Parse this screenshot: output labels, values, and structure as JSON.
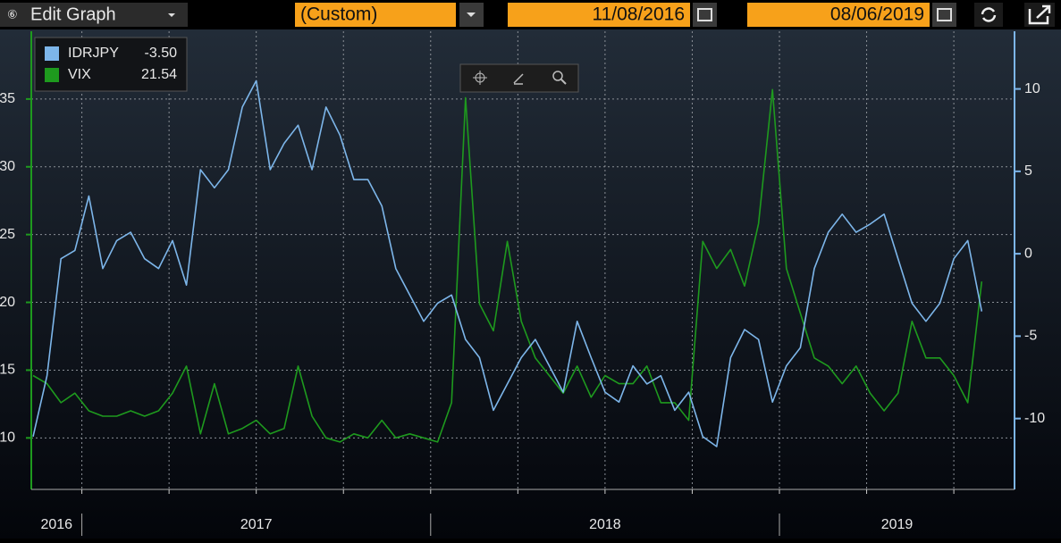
{
  "toolbar": {
    "title": "Edit Graph",
    "period": "(Custom)",
    "start_date": "11/08/2016",
    "end_date": "08/06/2019"
  },
  "chart_data": {
    "type": "line",
    "x": [
      2016.86,
      2016.9,
      2016.94,
      2016.98,
      2017.02,
      2017.06,
      2017.1,
      2017.14,
      2017.18,
      2017.22,
      2017.26,
      2017.3,
      2017.34,
      2017.38,
      2017.42,
      2017.46,
      2017.5,
      2017.54,
      2017.58,
      2017.62,
      2017.66,
      2017.7,
      2017.74,
      2017.78,
      2017.82,
      2017.86,
      2017.9,
      2017.94,
      2017.98,
      2018.02,
      2018.06,
      2018.1,
      2018.14,
      2018.18,
      2018.22,
      2018.26,
      2018.3,
      2018.34,
      2018.38,
      2018.42,
      2018.46,
      2018.5,
      2018.54,
      2018.58,
      2018.62,
      2018.66,
      2018.7,
      2018.74,
      2018.78,
      2018.82,
      2018.86,
      2018.9,
      2018.94,
      2018.98,
      2019.02,
      2019.06,
      2019.1,
      2019.14,
      2019.18,
      2019.22,
      2019.26,
      2019.3,
      2019.34,
      2019.38,
      2019.42,
      2019.46,
      2019.5,
      2019.54,
      2019.58
    ],
    "series": [
      {
        "name": "IDRJPY",
        "last_value_label": "-3.50",
        "color": "#7db6ea",
        "axis": "y2",
        "values": [
          -11.1,
          -7.4,
          -0.3,
          0.2,
          3.5,
          -0.9,
          0.8,
          1.3,
          -0.3,
          -0.9,
          0.8,
          -1.9,
          5.1,
          4.0,
          5.1,
          8.9,
          10.5,
          5.1,
          6.7,
          7.8,
          5.1,
          8.9,
          7.2,
          4.5,
          4.5,
          2.9,
          -0.9,
          -2.5,
          -4.1,
          -3.0,
          -2.5,
          -5.2,
          -6.3,
          -9.5,
          -7.9,
          -6.3,
          -5.2,
          -6.8,
          -8.4,
          -4.1,
          -6.3,
          -8.4,
          -9.0,
          -6.8,
          -7.9,
          -7.4,
          -9.5,
          -8.4,
          -11.1,
          -11.7,
          -6.3,
          -4.6,
          -5.2,
          -9.0,
          -6.8,
          -5.7,
          -0.9,
          1.3,
          2.4,
          1.3,
          1.8,
          2.4,
          -0.3,
          -3.0,
          -4.1,
          -3.0,
          -0.3,
          0.8,
          -3.5
        ]
      },
      {
        "name": "VIX",
        "last_value_label": "21.54",
        "color": "#1e9a1e",
        "values": [
          14.6,
          14.0,
          12.6,
          13.3,
          12.0,
          11.6,
          11.6,
          12.0,
          11.6,
          12.0,
          13.3,
          15.3,
          10.3,
          14.0,
          10.3,
          10.7,
          11.3,
          10.3,
          10.7,
          15.3,
          11.6,
          10.0,
          9.7,
          10.3,
          10.0,
          11.3,
          10.0,
          10.3,
          10.0,
          9.7,
          12.6,
          35.1,
          19.9,
          17.9,
          24.5,
          18.6,
          15.9,
          14.6,
          13.3,
          15.3,
          13.0,
          14.6,
          14.0,
          14.0,
          15.3,
          12.6,
          12.6,
          11.3,
          24.5,
          22.5,
          23.9,
          21.2,
          25.8,
          35.7,
          22.5,
          19.2,
          15.9,
          15.3,
          14.0,
          15.3,
          13.3,
          12.0,
          13.3,
          18.6,
          15.9,
          15.9,
          14.6,
          12.6,
          21.54
        ]
      }
    ],
    "xlim": [
      2016.855,
      2019.674
    ],
    "xticks": [
      2017,
      2017.25,
      2017.5,
      2017.75,
      2018,
      2018.25,
      2018.5,
      2018.75,
      2019,
      2019.25,
      2019.5
    ],
    "year_labels": [
      "2016",
      "2017",
      "2018",
      "2019"
    ],
    "ylim": [
      6.2,
      40
    ],
    "yticks": [
      10,
      15,
      20,
      25,
      30,
      35
    ],
    "y2lim": [
      -14.3,
      13.5
    ],
    "y2ticks": [
      -10,
      -5,
      0,
      5,
      10
    ],
    "grid": true
  }
}
